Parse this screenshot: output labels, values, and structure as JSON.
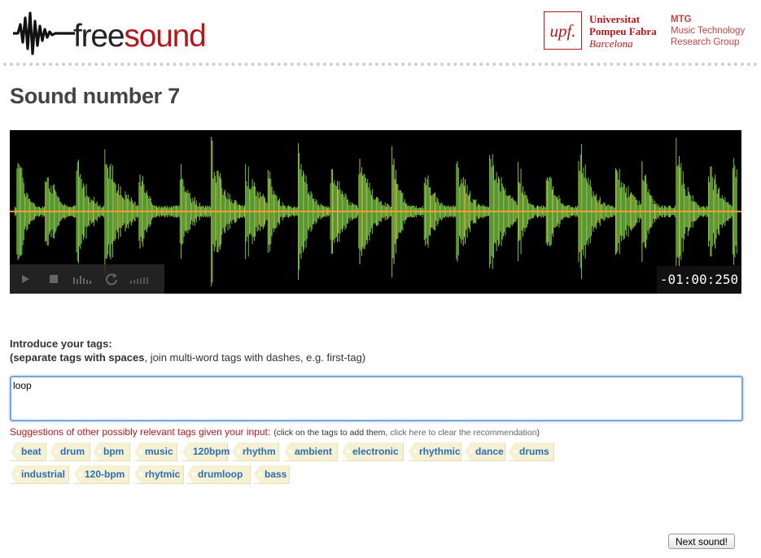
{
  "header": {
    "logo_free": "free",
    "logo_sound": "sound",
    "upf_mark": "upf.",
    "upf_line1": "Universitat",
    "upf_line2": "Pompeu Fabra",
    "upf_line3": "Barcelona",
    "mtg_line1": "MTG",
    "mtg_line2": "Music Technology",
    "mtg_line3": "Research Group"
  },
  "page_title": "Sound number 7",
  "player": {
    "timer": "-01:00:250",
    "icons": [
      "play-icon",
      "stop-icon",
      "spectrum-icon",
      "loop-icon",
      "volume-icon"
    ],
    "colors": {
      "background": "#000000",
      "wave": "#86d44c",
      "center_line": "#f0a030"
    }
  },
  "intro": {
    "line1": "Introduce your tags:",
    "line2_bold": "(separate tags with spaces",
    "line2_rest": ", join multi-word tags with dashes, e.g. first-tag)"
  },
  "tag_input": {
    "value": "loop"
  },
  "suggestions": {
    "label": "Suggestions of other possibly relevant tags given your input:",
    "note_open": "(click on the tags to add them, ",
    "clear_link": "click here to clear the recommendation",
    "note_close": ")"
  },
  "tags": [
    "beat",
    "drum",
    "bpm",
    "music",
    "120bpm",
    "rhythm",
    "ambient",
    "electronic",
    "rhythmic",
    "dance",
    "drums",
    "industrial",
    "120-bpm",
    "rhytmic",
    "drumloop",
    "bass"
  ],
  "next_button": "Next sound!",
  "colors": {
    "brand_red": "#b3191c",
    "tag_bg": "#f7f1d3",
    "tag_text": "#2a6db5"
  }
}
